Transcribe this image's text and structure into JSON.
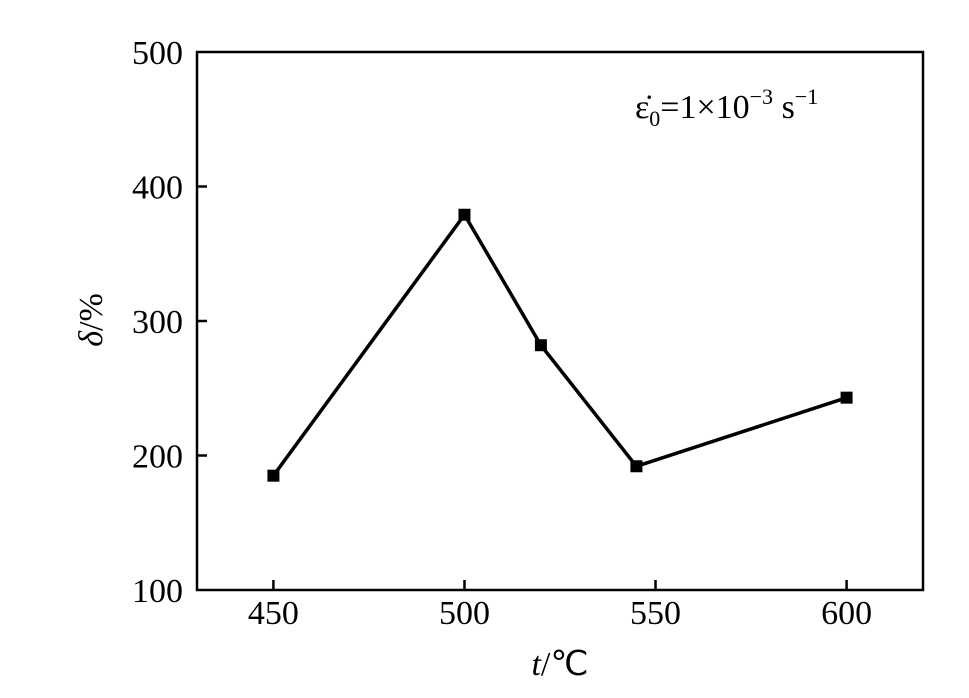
{
  "chart_data": {
    "type": "line",
    "x": [
      450,
      500,
      520,
      545,
      600
    ],
    "y": [
      185,
      379,
      282,
      192,
      243
    ],
    "xlabel": "t/℃",
    "ylabel": "δ/%",
    "xlim": [
      430,
      620
    ],
    "ylim": [
      100,
      500
    ],
    "xticks": [
      "450",
      "500",
      "550",
      "600"
    ],
    "yticks": [
      "100",
      "200",
      "300",
      "400",
      "500"
    ],
    "annotation": "ε̇₀=1×10⁻³ s⁻¹",
    "marker": "square",
    "line_color": "#000000",
    "grid": false
  }
}
